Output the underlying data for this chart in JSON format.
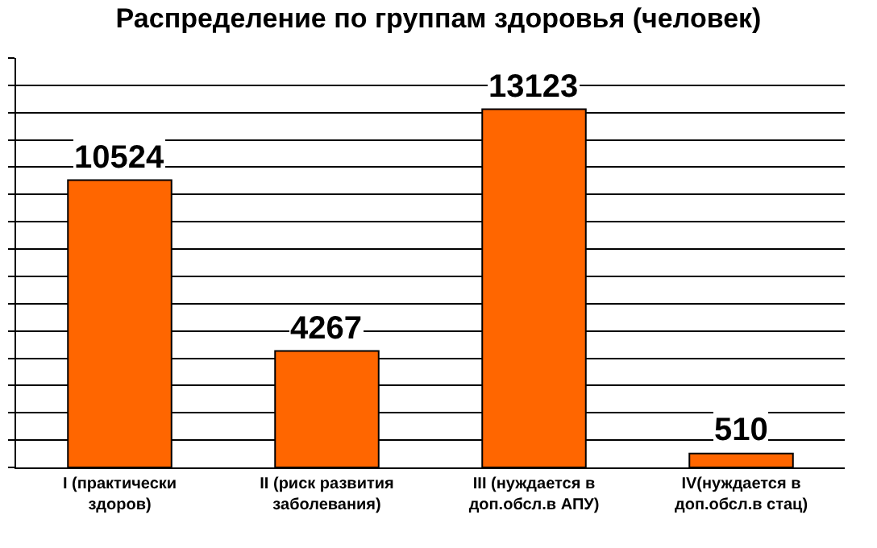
{
  "chart_data": {
    "type": "bar",
    "title": "Распределение по группам здоровья (человек)",
    "categories": [
      "I (практически\nздоров)",
      "II (риск развития\nзаболевания)",
      "III (нуждается в\nдоп.обсл.в АПУ)",
      "IV(нуждается в\nдоп.обсл.в стац)"
    ],
    "values": [
      10524,
      4267,
      13123,
      510
    ],
    "color": "#ff6600",
    "ylim": [
      0,
      15000
    ],
    "yticks": [
      {
        "value": 0,
        "label": null
      },
      {
        "value": 1000,
        "label": null
      },
      {
        "value": 2000,
        "label": null
      },
      {
        "value": 3000,
        "label": null
      },
      {
        "value": 4000,
        "label": null
      },
      {
        "value": 5000,
        "label": null
      },
      {
        "value": 6000,
        "label": null
      },
      {
        "value": 7000,
        "label": null
      },
      {
        "value": 8000,
        "label": null
      },
      {
        "value": 9000,
        "label": null
      },
      {
        "value": 10000,
        "label": null
      },
      {
        "value": 11000,
        "label": null
      },
      {
        "value": 12000,
        "label": null
      },
      {
        "value": 13000,
        "label": null
      },
      {
        "value": 14000,
        "label": null
      },
      {
        "value": 15000,
        "label": null
      }
    ],
    "tick_labels": "x",
    "grid": "y",
    "data_labels": true
  }
}
